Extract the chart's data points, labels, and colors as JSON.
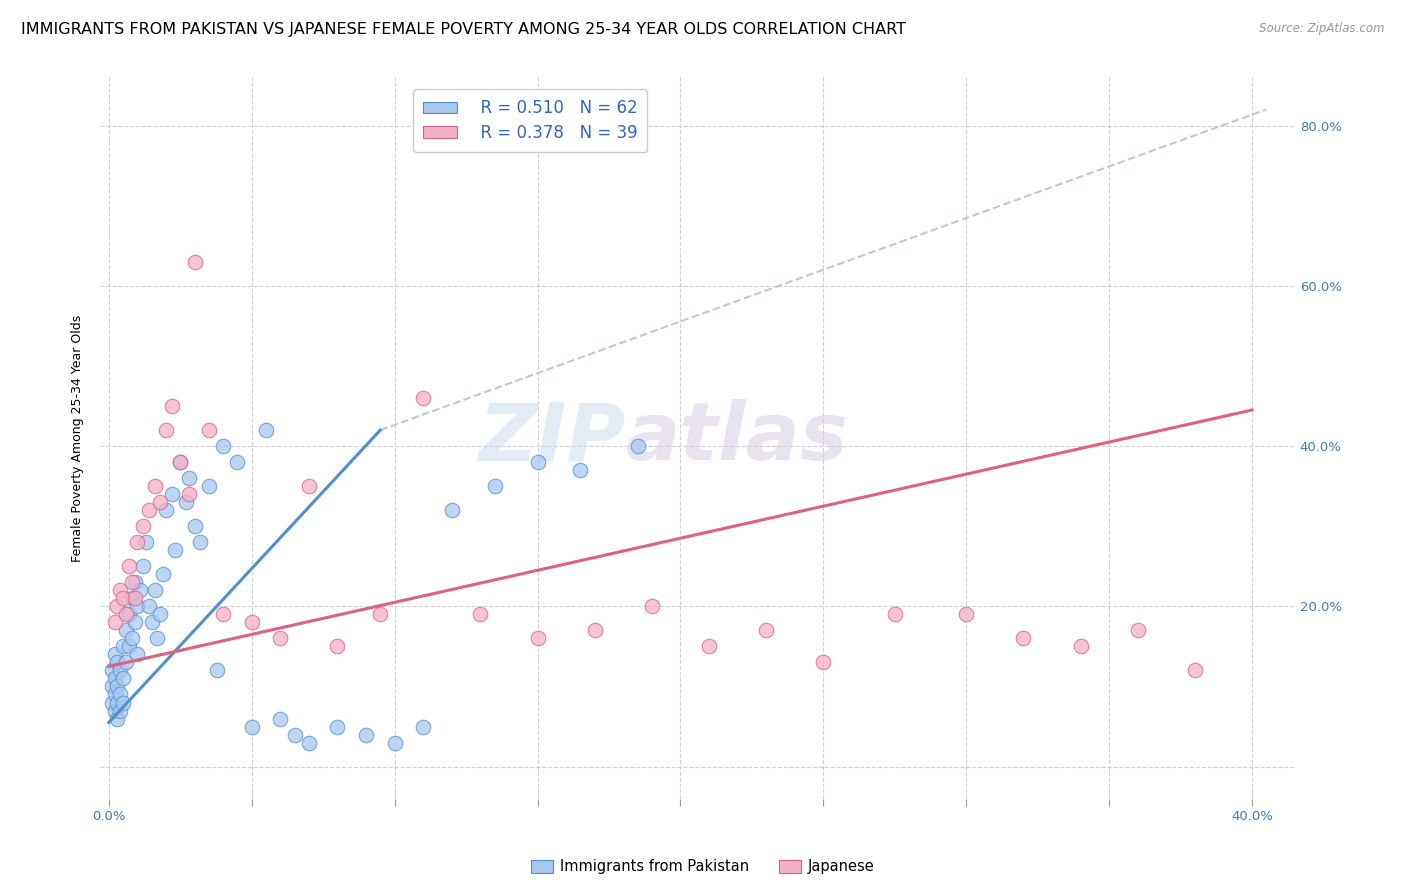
{
  "title": "IMMIGRANTS FROM PAKISTAN VS JAPANESE FEMALE POVERTY AMONG 25-34 YEAR OLDS CORRELATION CHART",
  "source": "Source: ZipAtlas.com",
  "ylabel": "Female Poverty Among 25-34 Year Olds",
  "xlim": [
    -0.003,
    0.415
  ],
  "ylim": [
    -0.04,
    0.86
  ],
  "x_ticks": [
    0.0,
    0.05,
    0.1,
    0.15,
    0.2,
    0.25,
    0.3,
    0.35,
    0.4
  ],
  "y_ticks": [
    0.0,
    0.2,
    0.4,
    0.6,
    0.8
  ],
  "y_tick_labels_right": [
    "",
    "20.0%",
    "40.0%",
    "60.0%",
    "80.0%"
  ],
  "title_fontsize": 11.5,
  "axis_label_fontsize": 9,
  "tick_fontsize": 9.5,
  "legend_r1": "R = 0.510",
  "legend_n1": "N = 62",
  "legend_r2": "R = 0.378",
  "legend_n2": "N = 39",
  "color_blue": "#a8c8f0",
  "color_pink": "#f4b0c8",
  "color_blue_line": "#5090d0",
  "color_pink_line": "#e06080",
  "color_dashed": "#b8c4d8",
  "watermark_zip": "ZIP",
  "watermark_atlas": "atlas",
  "blue_scatter_x": [
    0.001,
    0.001,
    0.001,
    0.002,
    0.002,
    0.002,
    0.002,
    0.003,
    0.003,
    0.003,
    0.003,
    0.004,
    0.004,
    0.004,
    0.005,
    0.005,
    0.005,
    0.006,
    0.006,
    0.007,
    0.007,
    0.008,
    0.008,
    0.009,
    0.009,
    0.01,
    0.01,
    0.011,
    0.012,
    0.013,
    0.014,
    0.015,
    0.016,
    0.017,
    0.018,
    0.019,
    0.02,
    0.022,
    0.023,
    0.025,
    0.027,
    0.028,
    0.03,
    0.032,
    0.035,
    0.038,
    0.04,
    0.045,
    0.05,
    0.055,
    0.06,
    0.065,
    0.07,
    0.08,
    0.09,
    0.1,
    0.11,
    0.12,
    0.135,
    0.15,
    0.165,
    0.185
  ],
  "blue_scatter_y": [
    0.12,
    0.1,
    0.08,
    0.14,
    0.11,
    0.09,
    0.07,
    0.13,
    0.1,
    0.08,
    0.06,
    0.12,
    0.09,
    0.07,
    0.15,
    0.11,
    0.08,
    0.17,
    0.13,
    0.19,
    0.15,
    0.21,
    0.16,
    0.23,
    0.18,
    0.2,
    0.14,
    0.22,
    0.25,
    0.28,
    0.2,
    0.18,
    0.22,
    0.16,
    0.19,
    0.24,
    0.32,
    0.34,
    0.27,
    0.38,
    0.33,
    0.36,
    0.3,
    0.28,
    0.35,
    0.12,
    0.4,
    0.38,
    0.05,
    0.42,
    0.06,
    0.04,
    0.03,
    0.05,
    0.04,
    0.03,
    0.05,
    0.32,
    0.35,
    0.38,
    0.37,
    0.4
  ],
  "pink_scatter_x": [
    0.002,
    0.003,
    0.004,
    0.005,
    0.006,
    0.007,
    0.008,
    0.009,
    0.01,
    0.012,
    0.014,
    0.016,
    0.018,
    0.02,
    0.022,
    0.025,
    0.028,
    0.03,
    0.035,
    0.04,
    0.05,
    0.06,
    0.07,
    0.08,
    0.095,
    0.11,
    0.13,
    0.15,
    0.17,
    0.19,
    0.21,
    0.23,
    0.25,
    0.275,
    0.3,
    0.32,
    0.34,
    0.36,
    0.38
  ],
  "pink_scatter_y": [
    0.18,
    0.2,
    0.22,
    0.21,
    0.19,
    0.25,
    0.23,
    0.21,
    0.28,
    0.3,
    0.32,
    0.35,
    0.33,
    0.42,
    0.45,
    0.38,
    0.34,
    0.63,
    0.42,
    0.19,
    0.18,
    0.16,
    0.35,
    0.15,
    0.19,
    0.46,
    0.19,
    0.16,
    0.17,
    0.2,
    0.15,
    0.17,
    0.13,
    0.19,
    0.19,
    0.16,
    0.15,
    0.17,
    0.12
  ],
  "blue_line_x": [
    0.0,
    0.095
  ],
  "blue_line_y": [
    0.055,
    0.42
  ],
  "pink_line_x": [
    0.0,
    0.4
  ],
  "pink_line_y": [
    0.125,
    0.445
  ],
  "dashed_line_x": [
    0.095,
    0.405
  ],
  "dashed_line_y": [
    0.42,
    0.82
  ]
}
